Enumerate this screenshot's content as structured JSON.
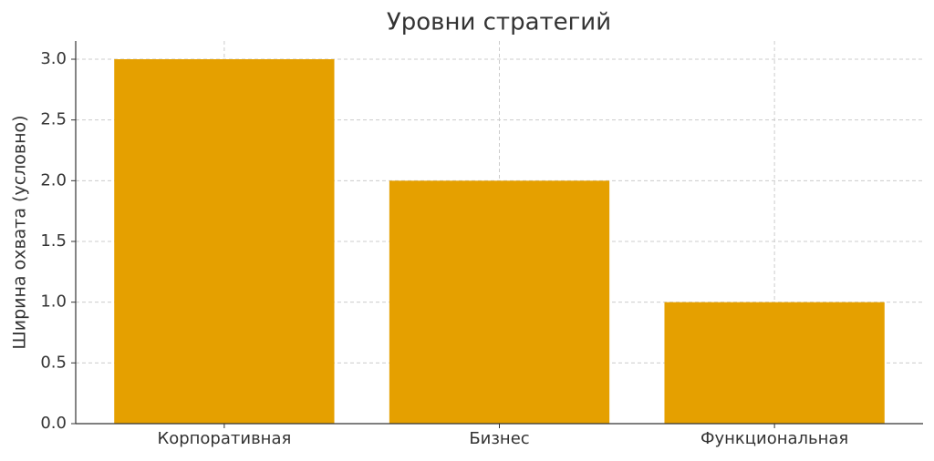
{
  "chart_data": {
    "type": "bar",
    "title": "Уровни стратегий",
    "y_label": "Ширина охвата (условно)",
    "categories": [
      "Корпоративная",
      "Бизнес",
      "Функциональная"
    ],
    "values": [
      3,
      2,
      1
    ],
    "color": "#e5a000",
    "ylim": [
      0,
      3.15
    ],
    "yticks": [
      {
        "value": 0,
        "label": "0.0"
      },
      {
        "value": 0.5,
        "label": "0.5"
      },
      {
        "value": 1,
        "label": "1.0"
      },
      {
        "value": 1.5,
        "label": "1.5"
      },
      {
        "value": 2,
        "label": "2.0"
      },
      {
        "value": 2.5,
        "label": "2.5"
      },
      {
        "value": 3,
        "label": "3.0"
      }
    ],
    "grid": true
  }
}
